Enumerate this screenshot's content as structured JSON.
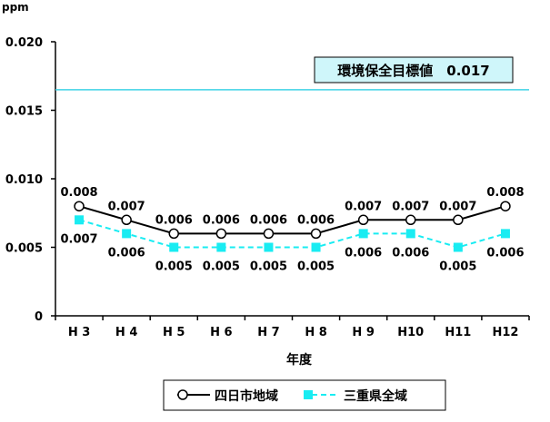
{
  "chart_data": {
    "type": "line",
    "ylabel": "ppm",
    "xlabel": "年度",
    "categories": [
      "H 3",
      "H 4",
      "H 5",
      "H 6",
      "H 7",
      "H 8",
      "H 9",
      "H10",
      "H11",
      "H12"
    ],
    "y_ticks": [
      "0",
      "0.005",
      "0.010",
      "0.015",
      "0.020"
    ],
    "ylim": [
      0,
      0.02
    ],
    "grid": false,
    "series": [
      {
        "name": "四日市地域",
        "values": [
          0.008,
          0.007,
          0.006,
          0.006,
          0.006,
          0.006,
          0.007,
          0.007,
          0.007,
          0.008
        ],
        "labels": [
          "0.008",
          "0.007",
          "0.006",
          "0.006",
          "0.006",
          "0.006",
          "0.007",
          "0.007",
          "0.007",
          "0.008"
        ],
        "color": "#000000",
        "marker": "open-circle",
        "line_style": "solid"
      },
      {
        "name": "三重県全域",
        "values": [
          0.007,
          0.006,
          0.005,
          0.005,
          0.005,
          0.005,
          0.006,
          0.006,
          0.005,
          0.006
        ],
        "labels": [
          "0.007",
          "0.006",
          "0.005",
          "0.005",
          "0.005",
          "0.005",
          "0.006",
          "0.006",
          "0.005",
          "0.006"
        ],
        "color": "#19ecf2",
        "marker": "filled-square",
        "line_style": "dashed"
      }
    ],
    "reference_line": {
      "value": 0.0165,
      "label": "環境保全目標値　0.017",
      "color": "#3fd2e6",
      "label_bg": "#cff6fa"
    },
    "legend_position": "bottom"
  }
}
